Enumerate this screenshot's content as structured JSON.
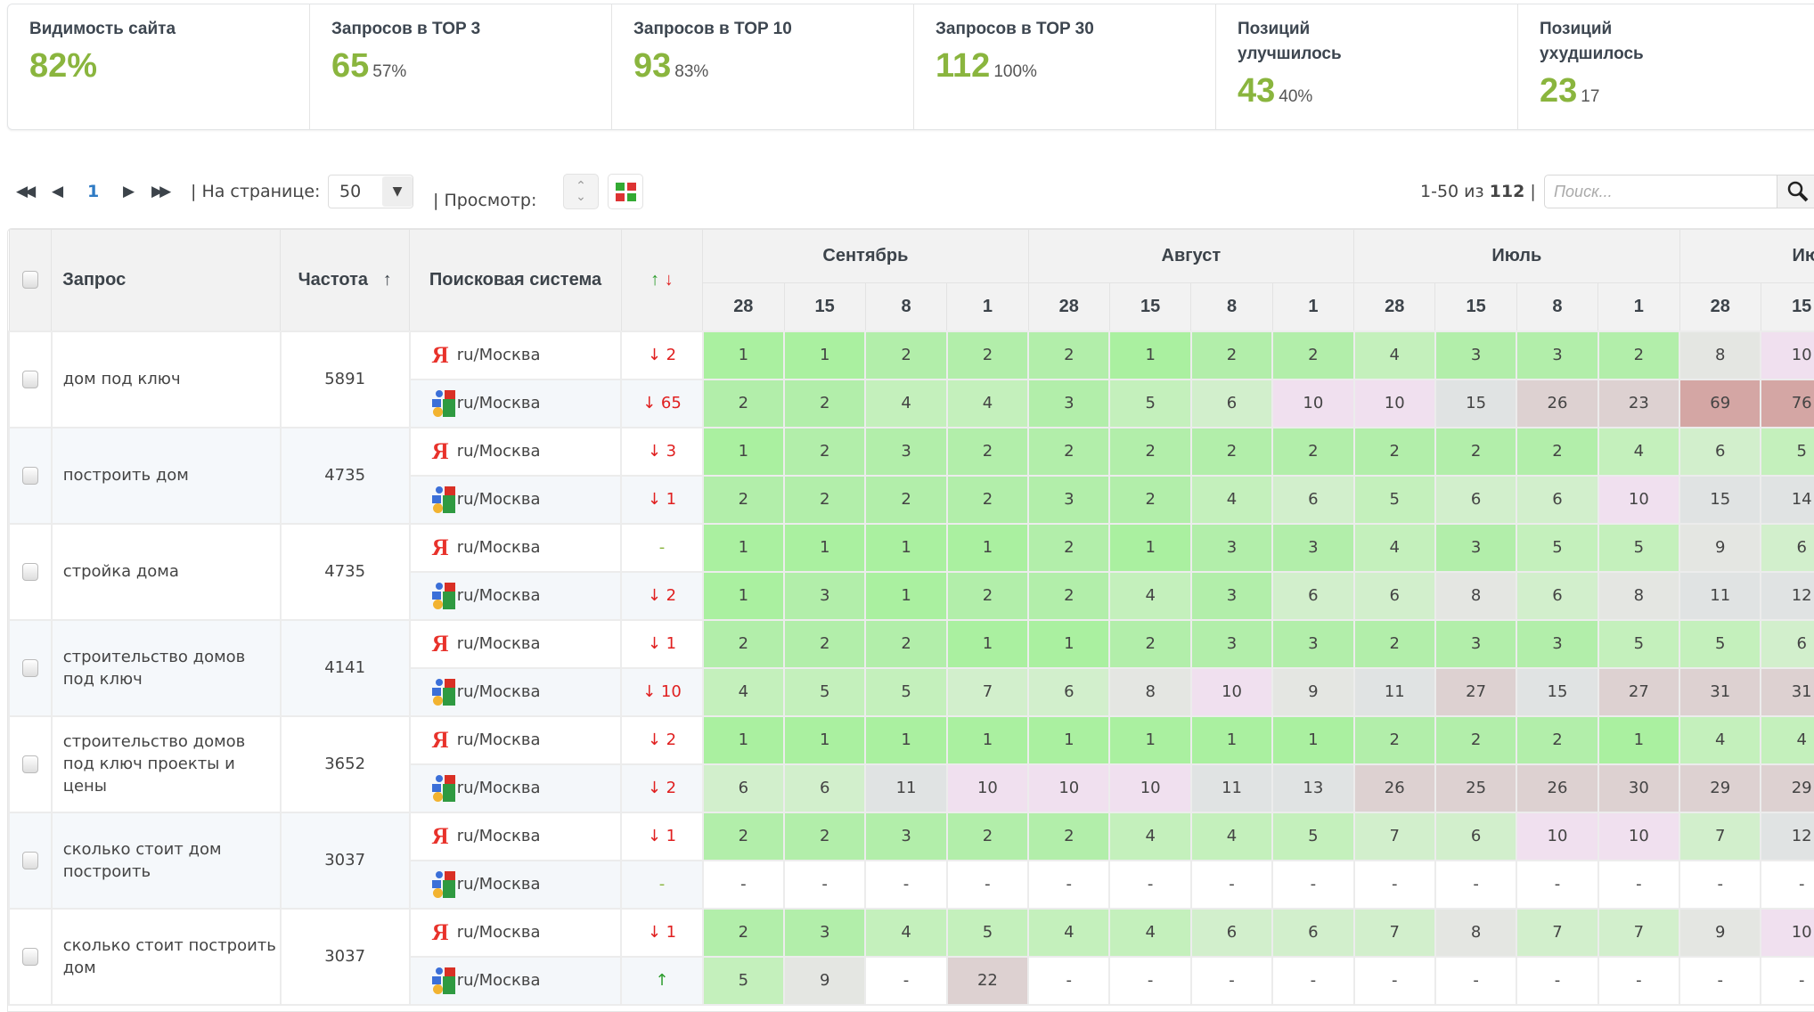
{
  "stats": [
    {
      "title": "Видимость сайта",
      "value": "82%",
      "sub": ""
    },
    {
      "title": "Запросов в TOP 3",
      "value": "65",
      "sub": "57%"
    },
    {
      "title": "Запросов в TOP 10",
      "value": "93",
      "sub": "83%"
    },
    {
      "title": "Запросов в TOP 30",
      "value": "112",
      "sub": "100%"
    },
    {
      "title": "Позиций улучшилось",
      "value": "43",
      "sub": "40%"
    },
    {
      "title": "Позиций ухудшилось",
      "value": "23",
      "sub": "17"
    }
  ],
  "toolbar": {
    "page": "1",
    "per_page_label": "| На странице:",
    "per_page": "50",
    "view_label": "| Просмотр:",
    "range": "1-50 из",
    "total": "112",
    "sep": "|",
    "search_placeholder": "Поиск..."
  },
  "table": {
    "headers": {
      "query": "Запрос",
      "freq": "Частота",
      "freq_sort": "↑",
      "engine": "Поисковая система",
      "change_up": "↑",
      "change_down": "↓"
    },
    "months": [
      "Сентябрь",
      "Август",
      "Июль",
      "Июнь"
    ],
    "days": [
      "28",
      "15",
      "8",
      "1",
      "28",
      "15",
      "8",
      "1",
      "28",
      "15",
      "8",
      "1",
      "28",
      "15"
    ],
    "rows": [
      {
        "query": "дом под ключ",
        "freq": "5891",
        "engines": [
          {
            "engine": "yandex",
            "region": "ru/Москва",
            "dir": "down",
            "change": "2",
            "pos": [
              "1",
              "1",
              "2",
              "2",
              "2",
              "1",
              "2",
              "2",
              "4",
              "3",
              "3",
              "2",
              "8",
              "10"
            ]
          },
          {
            "engine": "google",
            "region": "ru/Москва",
            "dir": "down",
            "change": "65",
            "pos": [
              "2",
              "2",
              "4",
              "4",
              "3",
              "5",
              "6",
              "10",
              "10",
              "15",
              "26",
              "23",
              "69",
              "76"
            ]
          }
        ]
      },
      {
        "query": "построить дом",
        "freq": "4735",
        "engines": [
          {
            "engine": "yandex",
            "region": "ru/Москва",
            "dir": "down",
            "change": "3",
            "pos": [
              "1",
              "2",
              "3",
              "2",
              "2",
              "2",
              "2",
              "2",
              "2",
              "2",
              "2",
              "4",
              "6",
              "5"
            ]
          },
          {
            "engine": "google",
            "region": "ru/Москва",
            "dir": "down",
            "change": "1",
            "pos": [
              "2",
              "2",
              "2",
              "2",
              "3",
              "2",
              "4",
              "6",
              "5",
              "6",
              "6",
              "10",
              "15",
              "14"
            ]
          }
        ]
      },
      {
        "query": "стройка дома",
        "freq": "4735",
        "engines": [
          {
            "engine": "yandex",
            "region": "ru/Москва",
            "dir": "none",
            "change": "-",
            "pos": [
              "1",
              "1",
              "1",
              "1",
              "2",
              "1",
              "3",
              "3",
              "4",
              "3",
              "5",
              "5",
              "9",
              "6"
            ]
          },
          {
            "engine": "google",
            "region": "ru/Москва",
            "dir": "down",
            "change": "2",
            "pos": [
              "1",
              "3",
              "1",
              "2",
              "2",
              "4",
              "3",
              "6",
              "6",
              "8",
              "6",
              "8",
              "11",
              "12"
            ]
          }
        ]
      },
      {
        "query": "строительство домов под ключ",
        "freq": "4141",
        "engines": [
          {
            "engine": "yandex",
            "region": "ru/Москва",
            "dir": "down",
            "change": "1",
            "pos": [
              "2",
              "2",
              "2",
              "1",
              "1",
              "2",
              "3",
              "3",
              "2",
              "3",
              "3",
              "5",
              "5",
              "6"
            ]
          },
          {
            "engine": "google",
            "region": "ru/Москва",
            "dir": "down",
            "change": "10",
            "pos": [
              "4",
              "5",
              "5",
              "7",
              "6",
              "8",
              "10",
              "9",
              "11",
              "27",
              "15",
              "27",
              "31",
              "31"
            ]
          }
        ]
      },
      {
        "query": "строительство домов под ключ проекты и цены",
        "freq": "3652",
        "engines": [
          {
            "engine": "yandex",
            "region": "ru/Москва",
            "dir": "down",
            "change": "2",
            "pos": [
              "1",
              "1",
              "1",
              "1",
              "1",
              "1",
              "1",
              "1",
              "2",
              "2",
              "2",
              "1",
              "4",
              "4"
            ]
          },
          {
            "engine": "google",
            "region": "ru/Москва",
            "dir": "down",
            "change": "2",
            "pos": [
              "6",
              "6",
              "11",
              "10",
              "10",
              "10",
              "11",
              "13",
              "26",
              "25",
              "26",
              "30",
              "29",
              "29"
            ]
          }
        ]
      },
      {
        "query": "сколько стоит дом построить",
        "freq": "3037",
        "engines": [
          {
            "engine": "yandex",
            "region": "ru/Москва",
            "dir": "down",
            "change": "1",
            "pos": [
              "2",
              "2",
              "3",
              "2",
              "2",
              "4",
              "4",
              "5",
              "7",
              "6",
              "10",
              "10",
              "7",
              "12"
            ]
          },
          {
            "engine": "google",
            "region": "ru/Москва",
            "dir": "none",
            "change": "-",
            "pos": [
              "-",
              "-",
              "-",
              "-",
              "-",
              "-",
              "-",
              "-",
              "-",
              "-",
              "-",
              "-",
              "-",
              "-"
            ]
          }
        ]
      },
      {
        "query": "сколько стоит построить дом",
        "freq": "3037",
        "engines": [
          {
            "engine": "yandex",
            "region": "ru/Москва",
            "dir": "down",
            "change": "1",
            "pos": [
              "2",
              "3",
              "4",
              "5",
              "4",
              "4",
              "6",
              "6",
              "7",
              "8",
              "7",
              "7",
              "9",
              "10"
            ]
          },
          {
            "engine": "google",
            "region": "ru/Москва",
            "dir": "up",
            "change": "",
            "pos": [
              "5",
              "9",
              "-",
              "22",
              "-",
              "-",
              "-",
              "-",
              "-",
              "-",
              "-",
              "-",
              "-",
              "-"
            ]
          }
        ]
      }
    ]
  }
}
